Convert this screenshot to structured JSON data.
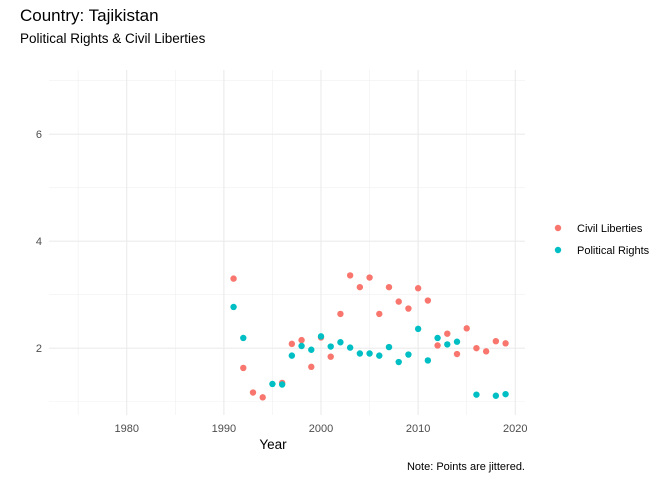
{
  "chart_data": {
    "type": "scatter",
    "title": "Country: Tajikistan",
    "subtitle": "Political Rights & Civil Liberties",
    "xlabel": "Year",
    "ylabel": "",
    "caption": "Note: Points are jittered.",
    "xlim": [
      1972,
      2021
    ],
    "ylim": [
      0.75,
      7.2
    ],
    "x_ticks": [
      1980,
      1990,
      2000,
      2010,
      2020
    ],
    "y_ticks": [
      2,
      4,
      6
    ],
    "grid": true,
    "legend_position": "right",
    "series": [
      {
        "name": "Civil Liberties",
        "color": "#F8766D",
        "points": [
          [
            1991,
            3.3
          ],
          [
            1992,
            1.63
          ],
          [
            1993,
            1.17
          ],
          [
            1994,
            1.08
          ],
          [
            1996,
            1.35
          ],
          [
            1997,
            2.08
          ],
          [
            1998,
            2.15
          ],
          [
            1999,
            1.65
          ],
          [
            2000,
            2.2
          ],
          [
            2001,
            1.84
          ],
          [
            2002,
            2.64
          ],
          [
            2003,
            3.36
          ],
          [
            2004,
            3.14
          ],
          [
            2005,
            3.32
          ],
          [
            2006,
            2.64
          ],
          [
            2007,
            3.14
          ],
          [
            2008,
            2.87
          ],
          [
            2009,
            2.74
          ],
          [
            2010,
            3.12
          ],
          [
            2011,
            2.89
          ],
          [
            2012,
            2.05
          ],
          [
            2013,
            2.27
          ],
          [
            2014,
            1.89
          ],
          [
            2015,
            2.37
          ],
          [
            2016,
            2.0
          ],
          [
            2017,
            1.94
          ],
          [
            2018,
            2.13
          ],
          [
            2019,
            2.09
          ]
        ]
      },
      {
        "name": "Political Rights",
        "color": "#00BFC4",
        "points": [
          [
            1991,
            2.77
          ],
          [
            1992,
            2.19
          ],
          [
            1995,
            1.33
          ],
          [
            1996,
            1.32
          ],
          [
            1997,
            1.86
          ],
          [
            1998,
            2.04
          ],
          [
            1999,
            1.97
          ],
          [
            2000,
            2.22
          ],
          [
            2001,
            2.03
          ],
          [
            2002,
            2.11
          ],
          [
            2003,
            2.01
          ],
          [
            2004,
            1.9
          ],
          [
            2005,
            1.9
          ],
          [
            2006,
            1.86
          ],
          [
            2007,
            2.02
          ],
          [
            2008,
            1.74
          ],
          [
            2009,
            1.88
          ],
          [
            2010,
            2.36
          ],
          [
            2011,
            1.77
          ],
          [
            2012,
            2.19
          ],
          [
            2013,
            2.07
          ],
          [
            2014,
            2.12
          ],
          [
            2016,
            1.13
          ],
          [
            2018,
            1.11
          ],
          [
            2019,
            1.14
          ]
        ]
      }
    ]
  }
}
